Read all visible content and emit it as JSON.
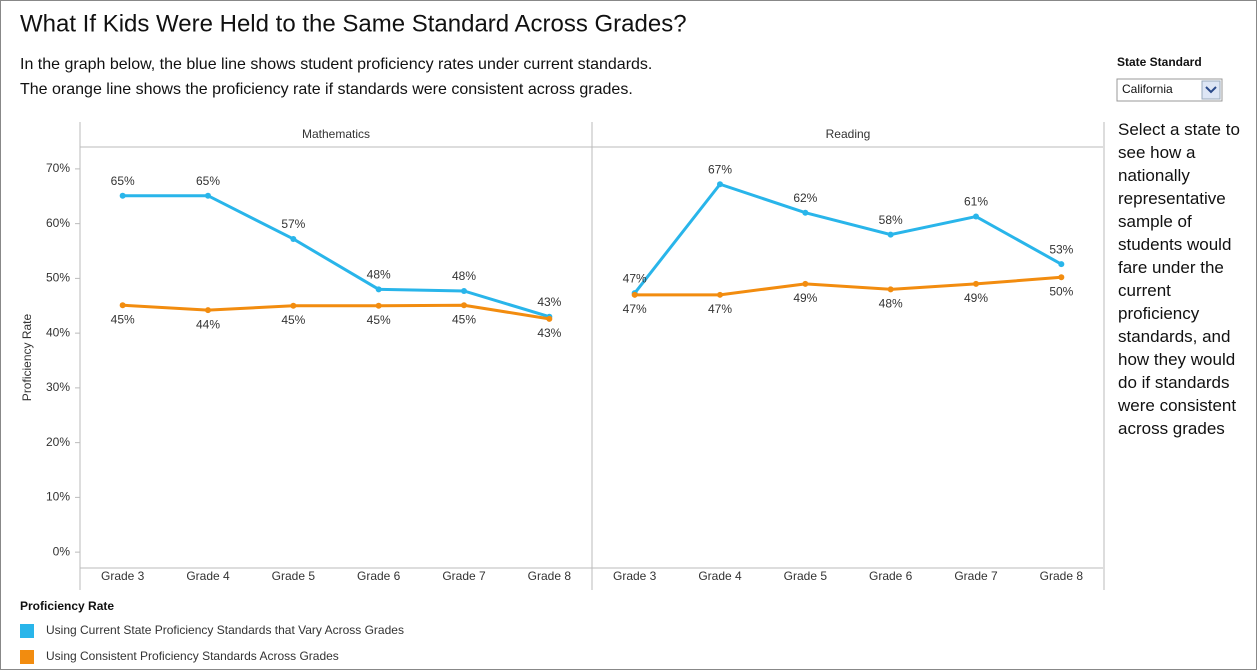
{
  "header": {
    "title": "What If Kids Were Held to the Same Standard Across Grades?",
    "subtitle": [
      "In the graph below, the blue line shows student proficiency rates under current standards.",
      "The orange line shows the proficiency rate if standards were consistent across grades."
    ]
  },
  "control": {
    "label": "State Standard",
    "value": "California"
  },
  "sidebar_text": "Select a state to see how a nationally representative sample of students would fare under the current proficiency standards, and how they would do if standards were consistent across grades",
  "legend": {
    "title": "Proficiency Rate"
  },
  "chart_data": [
    {
      "type": "line",
      "title": "Mathematics",
      "y_label": "Proficiency Rate",
      "categories": [
        "Grade 3",
        "Grade 4",
        "Grade 5",
        "Grade 6",
        "Grade 7",
        "Grade 8"
      ],
      "ylim": [
        -2.9,
        74
      ],
      "yticks": [
        {
          "value": 0,
          "label": "0%"
        },
        {
          "value": 10,
          "label": "10%"
        },
        {
          "value": 20,
          "label": "20%"
        },
        {
          "value": 30,
          "label": "30%"
        },
        {
          "value": 40,
          "label": "40%"
        },
        {
          "value": 50,
          "label": "50%"
        },
        {
          "value": 60,
          "label": "60%"
        },
        {
          "value": 70,
          "label": "70%"
        }
      ],
      "series": [
        {
          "name": "Using Current State Proficiency Standards that Vary Across Grades",
          "color": "#29b5ea",
          "values": [
            65.1,
            65.1,
            57.2,
            48.0,
            47.7,
            43.0
          ],
          "value_labels": [
            "65%",
            "65%",
            "57%",
            "48%",
            "48%",
            "43%"
          ]
        },
        {
          "name": "Using Consistent Proficiency Standards Across Grades",
          "color": "#f28c0f",
          "values": [
            45.1,
            44.2,
            45.0,
            45.0,
            45.1,
            42.6
          ],
          "value_labels": [
            "45%",
            "44%",
            "45%",
            "45%",
            "45%",
            "43%"
          ]
        }
      ]
    },
    {
      "type": "line",
      "title": "Reading",
      "categories": [
        "Grade 3",
        "Grade 4",
        "Grade 5",
        "Grade 6",
        "Grade 7",
        "Grade 8"
      ],
      "ylim": [
        -2.9,
        74
      ],
      "series": [
        {
          "name": "Using Current State Proficiency Standards that Vary Across Grades",
          "color": "#29b5ea",
          "values": [
            47.3,
            67.2,
            62.0,
            58.0,
            61.3,
            52.6
          ],
          "value_labels": [
            "47%",
            "67%",
            "62%",
            "58%",
            "61%",
            "53%"
          ]
        },
        {
          "name": "Using Consistent Proficiency Standards Across Grades",
          "color": "#f28c0f",
          "values": [
            47.0,
            47.0,
            49.0,
            48.0,
            49.0,
            50.2
          ],
          "value_labels": [
            "47%",
            "47%",
            "49%",
            "48%",
            "49%",
            "50%"
          ]
        }
      ]
    }
  ]
}
